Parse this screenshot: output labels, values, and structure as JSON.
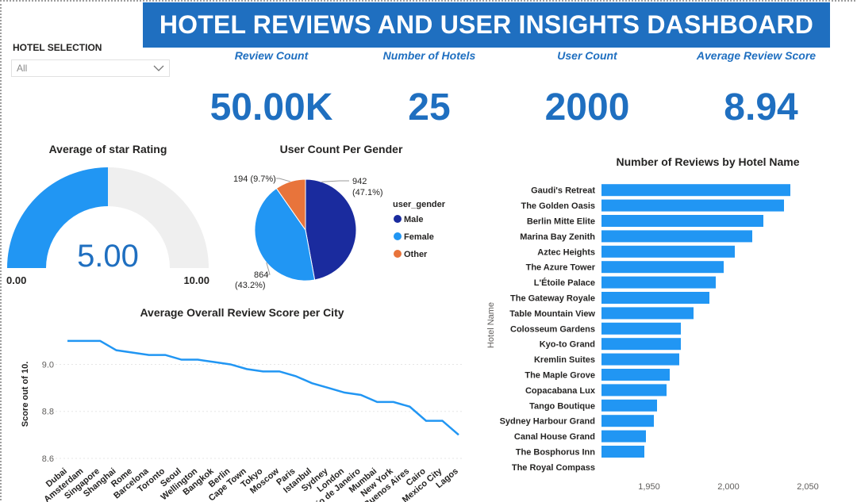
{
  "dashboard_title": "HOTEL REVIEWS AND USER INSIGHTS DASHBOARD",
  "slicer": {
    "title": "HOTEL SELECTION",
    "selected": "All"
  },
  "kpis": [
    {
      "label": "Review Count",
      "value": "50.00K"
    },
    {
      "label": "Number of Hotels",
      "value": "25"
    },
    {
      "label": "User Count",
      "value": "2000"
    },
    {
      "label": "Average Review Score",
      "value": "8.94"
    }
  ],
  "colors": {
    "brand": "#1f6fc0",
    "bar": "#2196f3",
    "male": "#1a2b9e",
    "female": "#2196f3",
    "other": "#e8743b",
    "gauge_bg": "#efefef"
  },
  "chart_data": [
    {
      "type": "gauge",
      "title": "Average of star Rating",
      "value": 5.0,
      "value_label": "5.00",
      "min": 0,
      "max": 10,
      "min_label": "0.00",
      "max_label": "10.00"
    },
    {
      "type": "pie",
      "title": "User Count Per Gender",
      "legend_title": "user_gender",
      "legend_position": "right",
      "slices": [
        {
          "name": "Male",
          "value": 942,
          "label_value": "942",
          "label_pct": "(47.1%)"
        },
        {
          "name": "Female",
          "value": 864,
          "label_value": "864",
          "label_pct": "(43.2%)"
        },
        {
          "name": "Other",
          "value": 194,
          "label_value": "194",
          "label_pct": "(9.7%)"
        }
      ]
    },
    {
      "type": "bar",
      "orientation": "horizontal",
      "title": "Number of Reviews by Hotel Name",
      "ylabel": "Hotel Name",
      "xlim": [
        1920,
        2065
      ],
      "xticks": [
        1950,
        2000,
        2050
      ],
      "xtick_labels": [
        "1,950",
        "2,000",
        "2,050"
      ],
      "categories": [
        "Gaudi's Retreat",
        "The Golden Oasis",
        "Berlin Mitte Elite",
        "Marina Bay Zenith",
        "Aztec Heights",
        "The Azure Tower",
        "L'Étoile Palace",
        "The Gateway Royale",
        "Table Mountain View",
        "Colosseum Gardens",
        "Kyo-to Grand",
        "Kremlin Suites",
        "The Maple Grove",
        "Copacabana Lux",
        "Tango Boutique",
        "Sydney Harbour Grand",
        "Canal House Grand",
        "The Bosphorus Inn",
        "The Royal Compass"
      ],
      "values": [
        2039,
        2035,
        2022,
        2015,
        2004,
        1997,
        1992,
        1988,
        1978,
        1970,
        1970,
        1969,
        1963,
        1961,
        1955,
        1953,
        1948,
        1947,
        1910
      ]
    },
    {
      "type": "line",
      "title": "Average Overall Review Score per City",
      "ylabel": "Score out of 10.",
      "ylim": [
        8.6,
        9.15
      ],
      "yticks": [
        8.6,
        8.8,
        9.0
      ],
      "ytick_labels": [
        "8.6",
        "8.8",
        "9.0"
      ],
      "grid": true,
      "categories": [
        "Dubai",
        "Amsterdam",
        "Singapore",
        "Shanghai",
        "Rome",
        "Barcelona",
        "Toronto",
        "Seoul",
        "Wellington",
        "Bangkok",
        "Berlin",
        "Cape Town",
        "Tokyo",
        "Moscow",
        "Paris",
        "Istanbul",
        "Sydney",
        "London",
        "Rio de Janeiro",
        "Mumbai",
        "New York",
        "Buenos Aires",
        "Cairo",
        "Mexico City",
        "Lagos"
      ],
      "values": [
        9.1,
        9.1,
        9.1,
        9.06,
        9.05,
        9.04,
        9.04,
        9.02,
        9.02,
        9.01,
        9.0,
        8.98,
        8.97,
        8.97,
        8.95,
        8.92,
        8.9,
        8.88,
        8.87,
        8.84,
        8.84,
        8.82,
        8.76,
        8.76,
        8.7
      ]
    }
  ]
}
